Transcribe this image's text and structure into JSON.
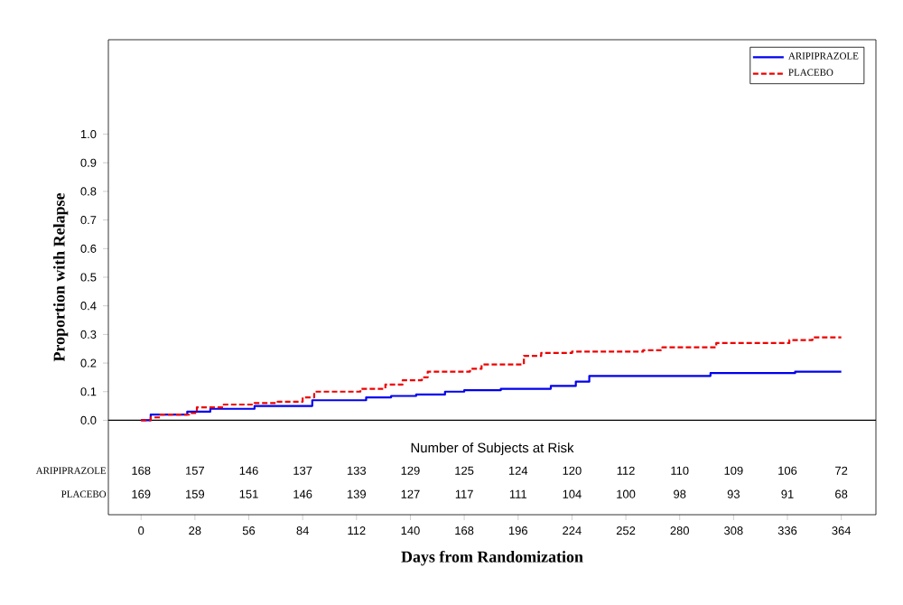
{
  "chart_data": {
    "type": "step",
    "xlabel": "Days from Randomization",
    "ylabel": "Proportion with Relapse",
    "xlim": [
      -17,
      382
    ],
    "ylim": [
      -0.33,
      1.33
    ],
    "xticks": [
      0,
      28,
      56,
      84,
      112,
      140,
      168,
      196,
      224,
      252,
      280,
      308,
      336,
      364
    ],
    "yticks": [
      {
        "value": 0,
        "label": "0.0"
      },
      {
        "value": 0.1,
        "label": "0.1"
      },
      {
        "value": 0.2,
        "label": "0.2"
      },
      {
        "value": 0.3,
        "label": "0.3"
      },
      {
        "value": 0.4,
        "label": "0.4"
      },
      {
        "value": 0.5,
        "label": "0.5"
      },
      {
        "value": 0.6,
        "label": "0.6"
      },
      {
        "value": 0.7,
        "label": "0.7"
      },
      {
        "value": 0.8,
        "label": "0.8"
      },
      {
        "value": 0.9,
        "label": "0.9"
      },
      {
        "value": 1.0,
        "label": "1.0"
      }
    ],
    "legend": "top right",
    "grid": false,
    "ref_lines": [
      {
        "axis": "y",
        "value": 0,
        "color": "#000000"
      }
    ],
    "series": [
      {
        "name": "ARIPIPRAZOLE",
        "color": "#0000ee",
        "line_style": "solid",
        "x": [
          0,
          5,
          24,
          36,
          59,
          89,
          117,
          130,
          143,
          158,
          168,
          187,
          213,
          226,
          233,
          296,
          340,
          364
        ],
        "values": [
          0,
          0.02,
          0.03,
          0.04,
          0.05,
          0.07,
          0.08,
          0.085,
          0.09,
          0.1,
          0.105,
          0.11,
          0.12,
          0.135,
          0.155,
          0.165,
          0.17,
          0.17
        ]
      },
      {
        "name": "PLACEBO",
        "color": "#ee0000",
        "line_style": "dashed",
        "x": [
          0,
          5,
          10,
          25,
          29,
          43,
          59,
          71,
          84,
          90,
          114,
          127,
          136,
          146,
          149,
          171,
          177,
          199,
          208,
          224,
          261,
          271,
          299,
          337,
          349,
          364
        ],
        "values": [
          0,
          0.01,
          0.02,
          0.025,
          0.045,
          0.055,
          0.06,
          0.065,
          0.08,
          0.1,
          0.11,
          0.125,
          0.14,
          0.15,
          0.17,
          0.18,
          0.195,
          0.225,
          0.235,
          0.24,
          0.245,
          0.255,
          0.27,
          0.28,
          0.29,
          0.29
        ]
      }
    ],
    "annotations": [
      "Number of Subjects at Risk",
      "ARIPIPRAZOLE",
      "168",
      "157",
      "146",
      "137",
      "133",
      "129",
      "125",
      "124",
      "120",
      "112",
      "110",
      "109",
      "106",
      "72",
      "PLACEBO",
      "169",
      "159",
      "151",
      "146",
      "139",
      "127",
      "117",
      "111",
      "104",
      "100",
      "98",
      "93",
      "91",
      "68"
    ]
  }
}
